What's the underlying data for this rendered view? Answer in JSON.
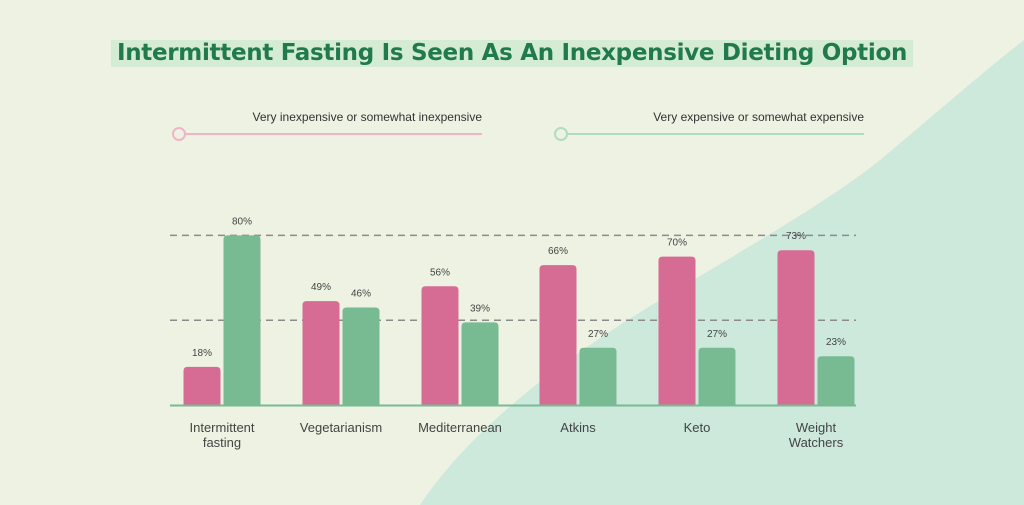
{
  "title": "Intermittent Fasting Is Seen As An Inexpensive Dieting Option",
  "colors": {
    "title": "#207a4a",
    "inexpensive": "#d66b93",
    "expensive": "#78bb92",
    "legend_line_inexpensive": "#f0b4c8",
    "legend_line_expensive": "#b0dcc0",
    "background": "#eef2e2",
    "background_shape": "#cce9dc",
    "gridline": "#8b8b8b",
    "baseline": "#78bb92",
    "axis_text": "#444444"
  },
  "legend": {
    "inexpensive": "Very inexpensive or somewhat inexpensive",
    "expensive": "Very expensive or somewhat expensive"
  },
  "chart_data": {
    "type": "bar",
    "title": "Intermittent Fasting Is Seen As An Inexpensive Dieting Option",
    "categories": [
      "Intermittent fasting",
      "Vegetarianism",
      "Mediterranean",
      "Atkins",
      "Keto",
      "Weight Watchers"
    ],
    "category_lines": [
      [
        "Intermittent",
        "fasting"
      ],
      [
        "Vegetarianism"
      ],
      [
        "Mediterranean"
      ],
      [
        "Atkins"
      ],
      [
        "Keto"
      ],
      [
        "Weight",
        "Watchers"
      ]
    ],
    "series": [
      {
        "name": "Very inexpensive or somewhat inexpensive",
        "values": [
          18,
          49,
          56,
          66,
          70,
          73
        ],
        "labels": [
          "18%",
          "49%",
          "56%",
          "66%",
          "70%",
          "73%"
        ]
      },
      {
        "name": "Very expensive or somewhat expensive",
        "values": [
          80,
          46,
          39,
          27,
          27,
          23
        ],
        "labels": [
          "80%",
          "46%",
          "39%",
          "27%",
          "27%",
          "23%"
        ]
      }
    ],
    "ylim": [
      0,
      100
    ],
    "gridlines": [
      40,
      80
    ],
    "grid": "dashed horizontal",
    "legend_position": "top",
    "data_labels": true
  }
}
